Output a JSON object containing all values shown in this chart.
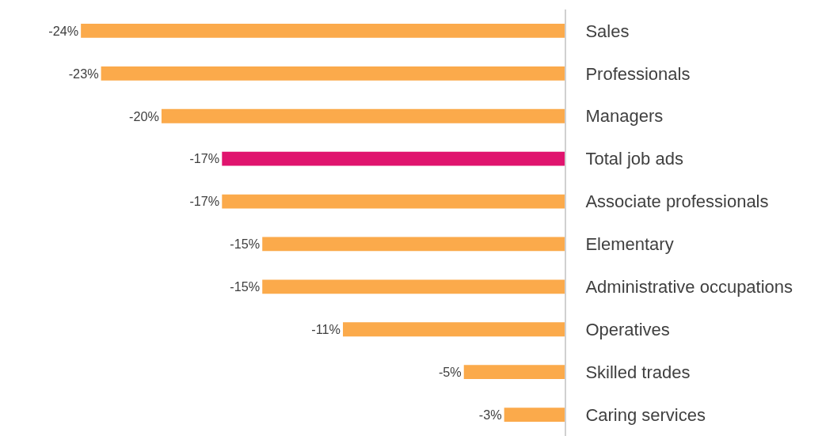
{
  "chart_data": {
    "type": "bar",
    "orientation": "horizontal",
    "categories": [
      "Sales",
      "Professionals",
      "Managers",
      "Total job ads",
      "Associate professionals",
      "Elementary",
      "Administrative occupations",
      "Operatives",
      "Skilled trades",
      "Caring services"
    ],
    "values": [
      -24,
      -23,
      -20,
      -17,
      -17,
      -15,
      -15,
      -11,
      -5,
      -3
    ],
    "colors": [
      "#fbaa4b",
      "#fbaa4b",
      "#fbaa4b",
      "#e0146e",
      "#fbaa4b",
      "#fbaa4b",
      "#fbaa4b",
      "#fbaa4b",
      "#fbaa4b",
      "#fbaa4b"
    ],
    "value_labels": [
      "-24%",
      "-23%",
      "-20%",
      "-17%",
      "-17%",
      "-15%",
      "-15%",
      "-11%",
      "-5%",
      "-3%"
    ],
    "tick_labels": "y"
  }
}
